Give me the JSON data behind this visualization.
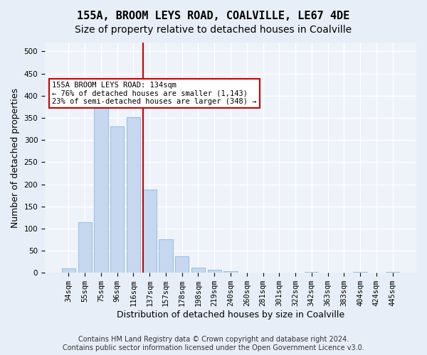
{
  "title": "155A, BROOM LEYS ROAD, COALVILLE, LE67 4DE",
  "subtitle": "Size of property relative to detached houses in Coalville",
  "xlabel": "Distribution of detached houses by size in Coalville",
  "ylabel": "Number of detached properties",
  "categories": [
    "34sqm",
    "55sqm",
    "75sqm",
    "96sqm",
    "116sqm",
    "137sqm",
    "157sqm",
    "178sqm",
    "198sqm",
    "219sqm",
    "240sqm",
    "260sqm",
    "281sqm",
    "301sqm",
    "322sqm",
    "342sqm",
    "363sqm",
    "383sqm",
    "404sqm",
    "424sqm",
    "445sqm"
  ],
  "values": [
    10,
    115,
    383,
    330,
    352,
    188,
    75,
    38,
    12,
    6,
    4,
    1,
    0,
    0,
    0,
    2,
    0,
    0,
    2,
    0,
    2
  ],
  "bar_color": "#c5d8f0",
  "bar_edge_color": "#7aaed6",
  "vline_x": 4.575,
  "vline_color": "#cc0000",
  "annotation_text": "155A BROOM LEYS ROAD: 134sqm\n← 76% of detached houses are smaller (1,143)\n23% of semi-detached houses are larger (348) →",
  "annotation_box_color": "#ffffff",
  "annotation_box_edge_color": "#cc0000",
  "footnote": "Contains HM Land Registry data © Crown copyright and database right 2024.\nContains public sector information licensed under the Open Government Licence v3.0.",
  "ylim": [
    0,
    520
  ],
  "yticks": [
    0,
    50,
    100,
    150,
    200,
    250,
    300,
    350,
    400,
    450,
    500
  ],
  "background_color": "#e8eef7",
  "plot_bg_color": "#eef2f9",
  "grid_color": "#ffffff",
  "title_fontsize": 11,
  "subtitle_fontsize": 10,
  "tick_fontsize": 7.5,
  "label_fontsize": 9,
  "footnote_fontsize": 7
}
